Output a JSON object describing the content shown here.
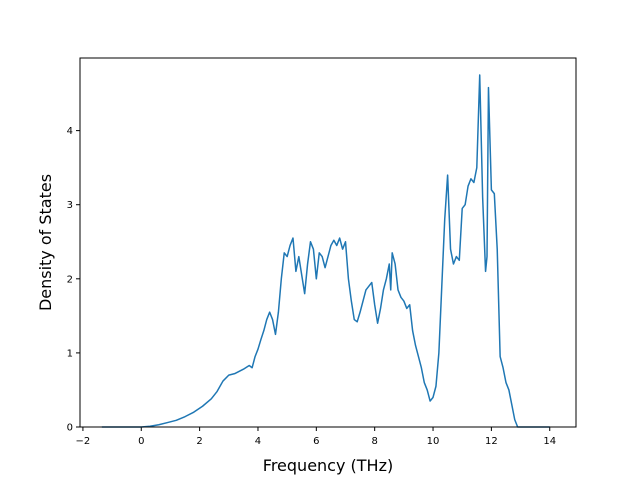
{
  "chart_data": {
    "type": "line",
    "title": "",
    "xlabel": "Frequency (THz)",
    "ylabel": "Density of States",
    "xlim": [
      -2.1,
      14.9
    ],
    "ylim": [
      0,
      4.98
    ],
    "xticks": [
      -2,
      0,
      2,
      4,
      6,
      8,
      10,
      12,
      14
    ],
    "yticks": [
      0,
      1,
      2,
      3,
      4
    ],
    "grid": false,
    "legend": "none",
    "line_color": "#1f77b4",
    "series": [
      {
        "x": [
          -1.35,
          -1.0,
          -0.5,
          0.0,
          0.3,
          0.6,
          0.9,
          1.2,
          1.5,
          1.8,
          2.1,
          2.4,
          2.6,
          2.8,
          3.0,
          3.2,
          3.35,
          3.5,
          3.7,
          3.8,
          3.9,
          4.0,
          4.1,
          4.2,
          4.3,
          4.4,
          4.5,
          4.6,
          4.7,
          4.8,
          4.9,
          5.0,
          5.1,
          5.2,
          5.3,
          5.4,
          5.5,
          5.6,
          5.7,
          5.8,
          5.9,
          6.0,
          6.1,
          6.2,
          6.3,
          6.4,
          6.5,
          6.6,
          6.7,
          6.8,
          6.9,
          7.0,
          7.1,
          7.2,
          7.3,
          7.4,
          7.5,
          7.6,
          7.7,
          7.8,
          7.9,
          8.0,
          8.1,
          8.2,
          8.3,
          8.4,
          8.5,
          8.55,
          8.6,
          8.7,
          8.8,
          8.9,
          9.0,
          9.1,
          9.2,
          9.3,
          9.4,
          9.5,
          9.6,
          9.7,
          9.8,
          9.9,
          10.0,
          10.1,
          10.2,
          10.3,
          10.4,
          10.5,
          10.6,
          10.7,
          10.8,
          10.9,
          11.0,
          11.1,
          11.2,
          11.3,
          11.4,
          11.5,
          11.6,
          11.7,
          11.8,
          11.85,
          11.9,
          12.0,
          12.1,
          12.2,
          12.3,
          12.4,
          12.5,
          12.6,
          12.7,
          12.8,
          12.9,
          13.0,
          13.5,
          14.0
        ],
        "y": [
          0.0,
          0.0,
          0.0,
          0.0,
          0.01,
          0.03,
          0.06,
          0.09,
          0.14,
          0.2,
          0.28,
          0.38,
          0.48,
          0.62,
          0.7,
          0.72,
          0.75,
          0.78,
          0.83,
          0.8,
          0.95,
          1.05,
          1.18,
          1.3,
          1.45,
          1.55,
          1.45,
          1.25,
          1.55,
          2.0,
          2.35,
          2.3,
          2.45,
          2.55,
          2.1,
          2.3,
          2.05,
          1.8,
          2.2,
          2.5,
          2.4,
          2.0,
          2.35,
          2.3,
          2.15,
          2.3,
          2.45,
          2.52,
          2.45,
          2.55,
          2.4,
          2.5,
          2.0,
          1.7,
          1.45,
          1.42,
          1.55,
          1.7,
          1.85,
          1.9,
          1.95,
          1.65,
          1.4,
          1.6,
          1.85,
          2.0,
          2.2,
          1.85,
          2.35,
          2.2,
          1.85,
          1.75,
          1.7,
          1.6,
          1.65,
          1.3,
          1.1,
          0.95,
          0.8,
          0.6,
          0.5,
          0.35,
          0.4,
          0.55,
          1.0,
          1.9,
          2.8,
          3.4,
          2.4,
          2.2,
          2.3,
          2.25,
          2.95,
          3.0,
          3.25,
          3.35,
          3.3,
          3.5,
          4.75,
          3.1,
          2.1,
          2.3,
          4.58,
          3.2,
          3.15,
          2.4,
          0.95,
          0.8,
          0.6,
          0.5,
          0.3,
          0.1,
          0.0,
          0.0,
          0.0,
          0.0
        ]
      }
    ]
  }
}
